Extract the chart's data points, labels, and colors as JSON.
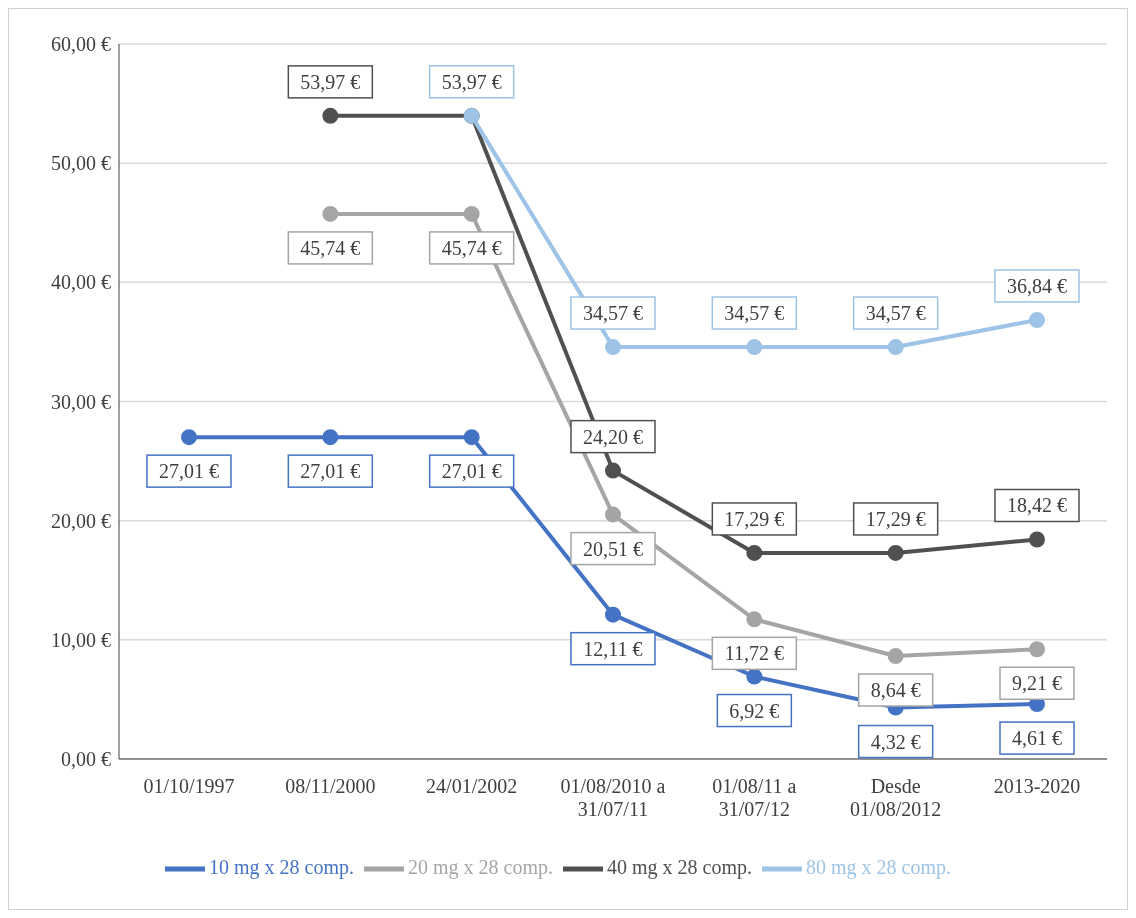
{
  "chart_data": {
    "type": "line",
    "categories": [
      "01/10/1997",
      "08/11/2000",
      "24/01/2002",
      "01/08/2010 a 31/07/11",
      "01/08/11 a 31/07/12",
      "Desde 01/08/2012",
      "2013-2020"
    ],
    "series": [
      {
        "name": "10 mg x 28 comp.",
        "color": "#4472c4",
        "values": [
          27.01,
          27.01,
          27.01,
          12.11,
          6.92,
          4.32,
          4.61
        ],
        "value_labels": [
          "27,01 €",
          "27,01 €",
          "27,01 €",
          "12,11 €",
          "6,92 €",
          "4,32 €",
          "4,61 €"
        ]
      },
      {
        "name": "20 mg x 28 comp.",
        "color": "#a5a5a5",
        "values": [
          null,
          45.74,
          45.74,
          20.51,
          11.72,
          8.64,
          9.21
        ],
        "value_labels": [
          null,
          "45,74 €",
          "45,74 €",
          "20,51 €",
          "11,72 €",
          "8,64 €",
          "9,21 €"
        ]
      },
      {
        "name": "40 mg x 28 comp.",
        "color": "#505050",
        "values": [
          null,
          53.97,
          53.97,
          24.2,
          17.29,
          17.29,
          18.42
        ],
        "value_labels": [
          null,
          "53,97 €",
          null,
          "24,20 €",
          "17,29 €",
          "17,29 €",
          "18,42 €"
        ]
      },
      {
        "name": "80 mg x 28 comp.",
        "color": "#9dc3e6",
        "values": [
          null,
          null,
          53.97,
          34.57,
          34.57,
          34.57,
          36.84
        ],
        "value_labels": [
          null,
          null,
          "53,97 €",
          "34,57 €",
          "34,57 €",
          "34,57 €",
          "36,84 €"
        ]
      }
    ],
    "ylim": [
      0,
      60
    ],
    "yticks": [
      {
        "value": 0,
        "label": "0,00 €"
      },
      {
        "value": 10,
        "label": "10,00 €"
      },
      {
        "value": 20,
        "label": "20,00 €"
      },
      {
        "value": 30,
        "label": "30,00 €"
      },
      {
        "value": 40,
        "label": "40,00 €"
      },
      {
        "value": 50,
        "label": "50,00 €"
      },
      {
        "value": 60,
        "label": "60,00 €"
      }
    ],
    "grid": "y",
    "legend": "bottom",
    "marker": "circle",
    "line_style": "solid"
  }
}
